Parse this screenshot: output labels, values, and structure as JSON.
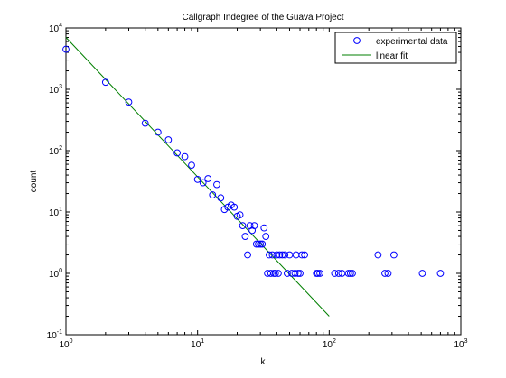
{
  "chart_data": {
    "type": "scatter",
    "title": "Callgraph Indegree of the Guava Project",
    "xlabel": "k",
    "ylabel": "count",
    "xscale": "log",
    "yscale": "log",
    "xlim": [
      1,
      1000
    ],
    "ylim": [
      0.1,
      10000
    ],
    "xticks": [
      {
        "value": 1,
        "mantissa": "10",
        "exp": "0"
      },
      {
        "value": 10,
        "mantissa": "10",
        "exp": "1"
      },
      {
        "value": 100,
        "mantissa": "10",
        "exp": "2"
      },
      {
        "value": 1000,
        "mantissa": "10",
        "exp": "3"
      }
    ],
    "yticks": [
      {
        "value": 0.1,
        "mantissa": "10",
        "exp": "-1"
      },
      {
        "value": 1,
        "mantissa": "10",
        "exp": "0"
      },
      {
        "value": 10,
        "mantissa": "10",
        "exp": "1"
      },
      {
        "value": 100,
        "mantissa": "10",
        "exp": "2"
      },
      {
        "value": 1000,
        "mantissa": "10",
        "exp": "3"
      },
      {
        "value": 10000,
        "mantissa": "10",
        "exp": "4"
      }
    ],
    "grid": false,
    "legend_position": "top-right",
    "series": [
      {
        "name": "experimental data",
        "kind": "scatter",
        "marker": "open-circle",
        "color": "#0000ff",
        "points": [
          [
            1,
            4500
          ],
          [
            2,
            1300
          ],
          [
            3,
            620
          ],
          [
            4,
            280
          ],
          [
            5,
            200
          ],
          [
            6,
            150
          ],
          [
            7,
            92
          ],
          [
            8,
            80
          ],
          [
            9,
            58
          ],
          [
            10,
            34
          ],
          [
            11,
            30
          ],
          [
            12,
            35
          ],
          [
            13,
            19
          ],
          [
            14,
            28
          ],
          [
            15,
            17
          ],
          [
            16,
            11
          ],
          [
            17,
            12
          ],
          [
            18,
            13
          ],
          [
            19,
            12
          ],
          [
            20,
            8.5
          ],
          [
            21,
            9
          ],
          [
            22,
            6
          ],
          [
            23,
            4
          ],
          [
            24,
            2
          ],
          [
            25,
            6
          ],
          [
            26,
            5
          ],
          [
            27,
            6
          ],
          [
            28,
            3
          ],
          [
            29,
            3
          ],
          [
            30,
            3
          ],
          [
            31,
            3
          ],
          [
            32,
            5.5
          ],
          [
            33,
            4
          ],
          [
            34,
            1
          ],
          [
            35,
            2
          ],
          [
            36,
            1
          ],
          [
            37,
            2
          ],
          [
            38,
            1
          ],
          [
            39,
            1
          ],
          [
            40,
            2
          ],
          [
            41,
            1
          ],
          [
            42,
            2
          ],
          [
            44,
            2
          ],
          [
            46,
            2
          ],
          [
            48,
            1
          ],
          [
            50,
            2
          ],
          [
            52,
            1
          ],
          [
            55,
            1
          ],
          [
            56,
            2
          ],
          [
            58,
            1
          ],
          [
            60,
            1
          ],
          [
            62,
            2
          ],
          [
            65,
            2
          ],
          [
            80,
            1
          ],
          [
            82,
            1
          ],
          [
            85,
            1
          ],
          [
            110,
            1
          ],
          [
            118,
            1
          ],
          [
            125,
            1
          ],
          [
            140,
            1
          ],
          [
            145,
            1
          ],
          [
            150,
            1
          ],
          [
            235,
            2
          ],
          [
            265,
            1
          ],
          [
            280,
            1
          ],
          [
            310,
            2
          ],
          [
            510,
            1
          ],
          [
            700,
            1
          ]
        ]
      },
      {
        "name": "linear fit",
        "kind": "line",
        "color": "#007f00",
        "points": [
          [
            1,
            7000
          ],
          [
            100,
            0.2
          ]
        ]
      }
    ]
  }
}
